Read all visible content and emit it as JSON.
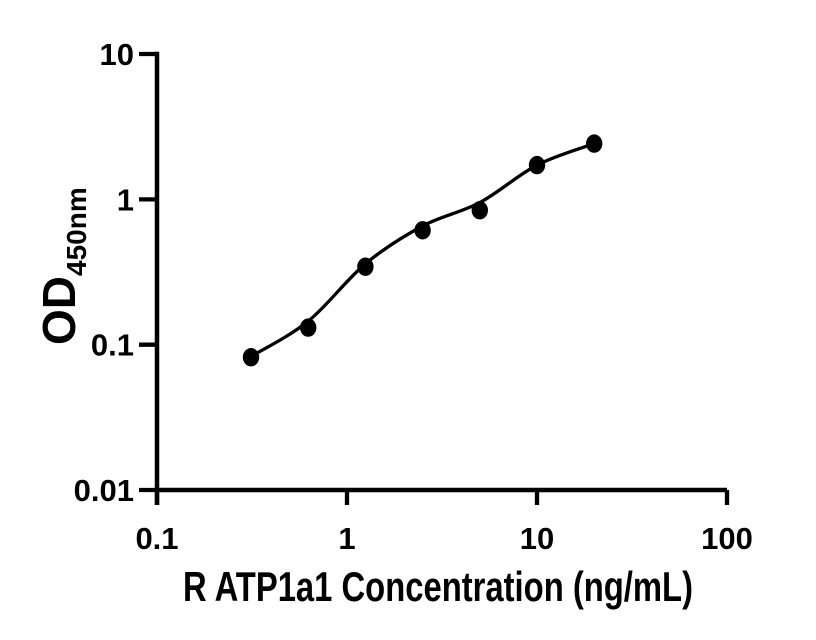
{
  "figure": {
    "background_color": "#ffffff",
    "ink_color": "#000000"
  },
  "chart_data": {
    "type": "scatter",
    "title": "",
    "xlabel": "R ATP1a1 Concentration (ng/mL)",
    "ylabel_main": "OD",
    "ylabel_subscript": "450nm",
    "x_scale": "log",
    "y_scale": "log",
    "xlim": [
      0.1,
      100
    ],
    "ylim": [
      0.01,
      10
    ],
    "x_ticks": [
      0.1,
      1,
      10,
      100
    ],
    "x_tick_labels": [
      "0.1",
      "1",
      "10",
      "100"
    ],
    "y_ticks": [
      0.01,
      0.1,
      1,
      10
    ],
    "y_tick_labels": [
      "0.01",
      "0.1",
      "1",
      "10"
    ],
    "grid": false,
    "legend": "none",
    "marker_color": "#000000",
    "line_color": "#000000",
    "series": [
      {
        "name": "standard-points",
        "type": "scatter",
        "marker": "filled-circle",
        "x": [
          0.3125,
          0.625,
          1.25,
          2.5,
          5,
          10,
          20
        ],
        "y": [
          0.082,
          0.131,
          0.344,
          0.612,
          0.842,
          1.72,
          2.42
        ]
      },
      {
        "name": "fit-curve",
        "type": "line",
        "x": [
          0.3125,
          0.625,
          1.25,
          2.5,
          5,
          10,
          20
        ],
        "y": [
          0.083,
          0.145,
          0.36,
          0.655,
          0.95,
          1.72,
          2.42
        ]
      }
    ]
  }
}
